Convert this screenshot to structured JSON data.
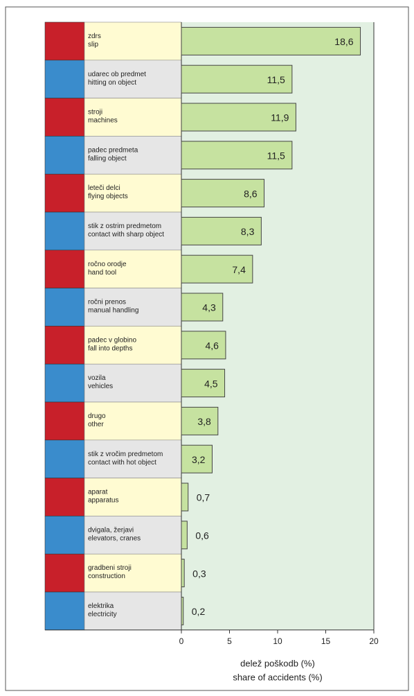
{
  "chart_data": {
    "type": "bar",
    "orientation": "horizontal",
    "categories": [
      "zdrs",
      "udarec ob predmet",
      "stroji",
      "padec predmeta",
      "leteči  delci",
      "stik z ostrim predmetom",
      "ročno orodje",
      "ročni prenos",
      "padec v globino",
      "vozila",
      "drugo",
      "stik z vročim predmetom",
      "aparat",
      "dvigala, žerjavi",
      "gradbeni stroji",
      "elektrika"
    ],
    "categories_en": [
      "slip",
      "hitting on object",
      "machines",
      "falling object",
      "flying objects",
      "contact with sharp object",
      "hand tool",
      "manual handling",
      "fall into depths",
      "vehicles",
      "other",
      "contact with hot object",
      "apparatus",
      "elevators, cranes",
      "construction",
      "electricity"
    ],
    "values": [
      18.6,
      11.5,
      11.9,
      11.5,
      8.6,
      8.3,
      7.4,
      4.3,
      4.6,
      4.5,
      3.8,
      3.2,
      0.7,
      0.6,
      0.3,
      0.2
    ],
    "value_labels": [
      "18,6",
      "11,5",
      "11,9",
      "11,5",
      "8,6",
      "8,3",
      "7,4",
      "4,3",
      "4,6",
      "4,5",
      "3,8",
      "3,2",
      "0,7",
      "0,6",
      "0,3",
      "0,2"
    ],
    "color": "#c6e2a0",
    "xlim": [
      0,
      20
    ],
    "xticks": [
      0,
      5,
      10,
      15,
      20
    ],
    "xlabel": "delež poškodb (%)",
    "xlabel_en": "share of accidents (%)"
  }
}
